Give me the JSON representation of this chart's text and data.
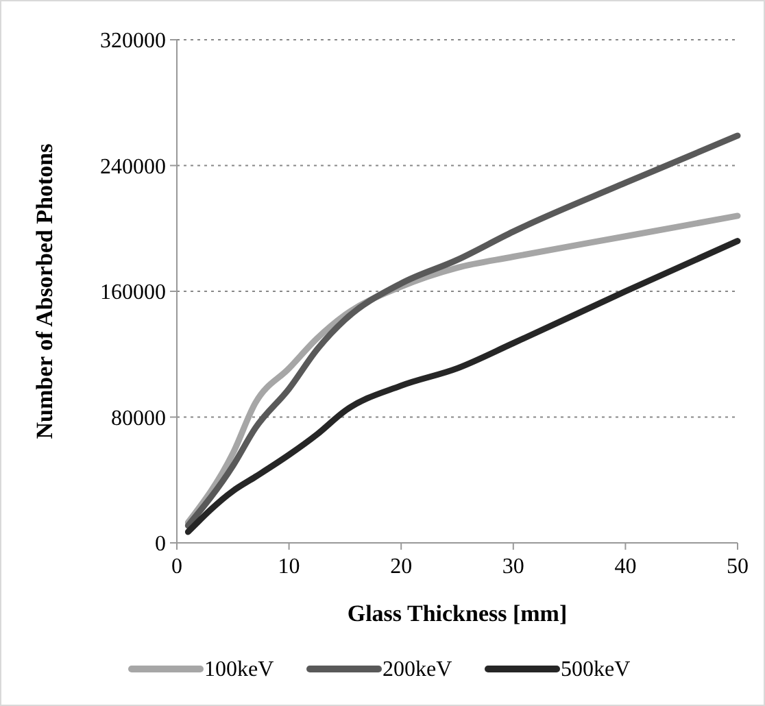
{
  "chart_data": {
    "type": "line",
    "xlabel": "Glass Thickness [mm]",
    "ylabel": "Number of Absorbed Photons",
    "x": [
      1,
      5,
      7,
      10,
      12.5,
      15,
      20,
      25,
      30,
      40,
      50
    ],
    "xlim": [
      0,
      50
    ],
    "xticks": [
      0,
      10,
      20,
      30,
      40,
      50
    ],
    "ylim": [
      0,
      320000
    ],
    "yticks": [
      0,
      80000,
      160000,
      240000,
      320000
    ],
    "grid": "y",
    "legend": "bottom",
    "marker": "none",
    "line_style": "solid",
    "series": [
      {
        "name": "100keV",
        "color": "#a6a6a6",
        "values": [
          13000,
          57000,
          89000,
          111000,
          130000,
          145000,
          163000,
          175000,
          182000,
          195000,
          208000
        ]
      },
      {
        "name": "200keV",
        "color": "#595959",
        "values": [
          11000,
          49000,
          73000,
          98000,
          123000,
          142000,
          165000,
          180000,
          198000,
          229000,
          259000
        ]
      },
      {
        "name": "500keV",
        "color": "#262626",
        "values": [
          7000,
          33000,
          42000,
          56000,
          69000,
          84000,
          100000,
          111000,
          127000,
          160000,
          192000
        ]
      }
    ]
  }
}
